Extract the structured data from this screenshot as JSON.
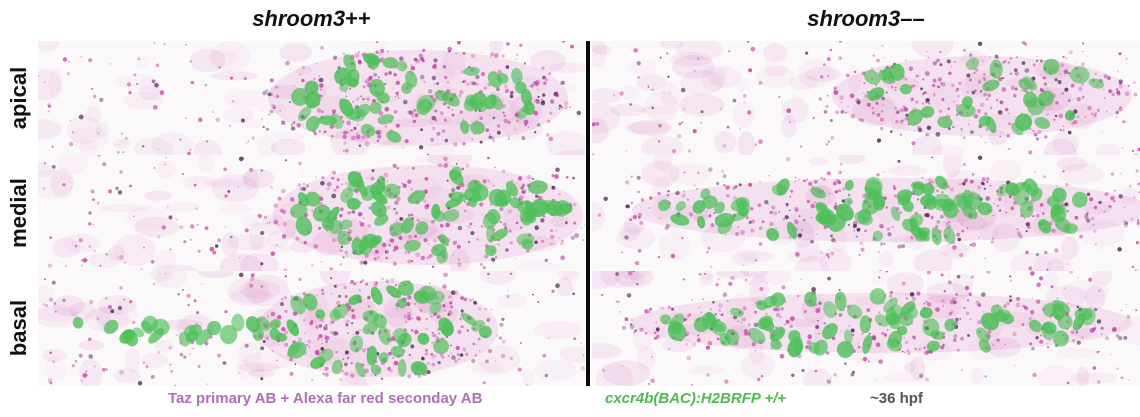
{
  "columns": {
    "left": {
      "gene": "shroom3",
      "suffix": "++"
    },
    "right": {
      "gene": "shroom3",
      "suffix": "––"
    }
  },
  "rows": [
    "apical",
    "medial",
    "basal"
  ],
  "caption": {
    "antibody": "Taz primary AB + Alexa far red seconday AB",
    "line": "cxcr4b(BAC):H2BRFP +/+",
    "stage": "~36 hpf"
  },
  "colors": {
    "magenta": "#c23a9e",
    "green": "#4fbf5a",
    "dark": "#3a1a4a",
    "divider": "#0a0a0a"
  }
}
